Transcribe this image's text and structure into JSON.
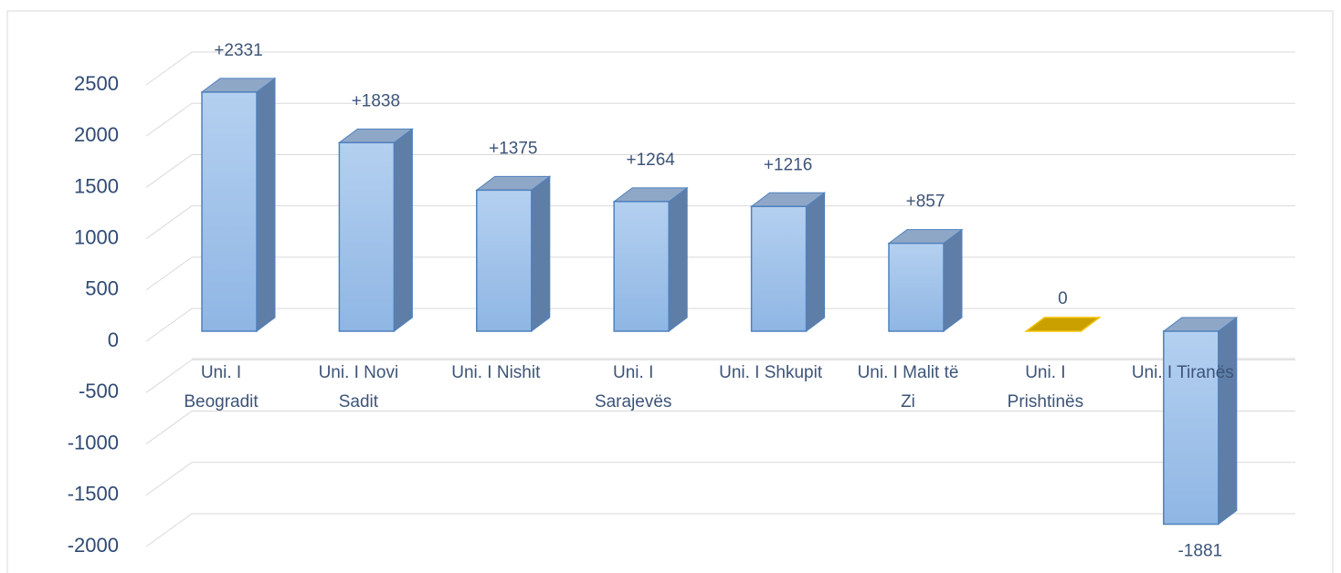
{
  "chart_data": {
    "type": "bar3d",
    "categories": [
      "Uni. I Beogradit",
      "Uni. I Novi Sadit",
      "Uni. I Nishit",
      "Uni. I Sarajevës",
      "Uni. I Shkupit",
      "Uni. I Malit të Zi",
      "Uni. I Prishtinës",
      "Uni. I Tiranës"
    ],
    "values": [
      2331,
      1838,
      1375,
      1264,
      1216,
      857,
      0,
      -1881
    ],
    "value_labels": [
      "+2331",
      "+1838",
      "+1375",
      "+1264",
      "+1216",
      "+857",
      "0",
      "-1881"
    ],
    "colors": [
      "#9dc0e8",
      "#9dc0e8",
      "#9dc0e8",
      "#9dc0e8",
      "#9dc0e8",
      "#9dc0e8",
      "#c9a000",
      "#9dc0e8"
    ],
    "ylim": [
      -2000,
      2500
    ],
    "yticks": [
      -2000,
      -1500,
      -1000,
      -500,
      0,
      500,
      1000,
      1500,
      2000,
      2500
    ],
    "grid": true
  }
}
